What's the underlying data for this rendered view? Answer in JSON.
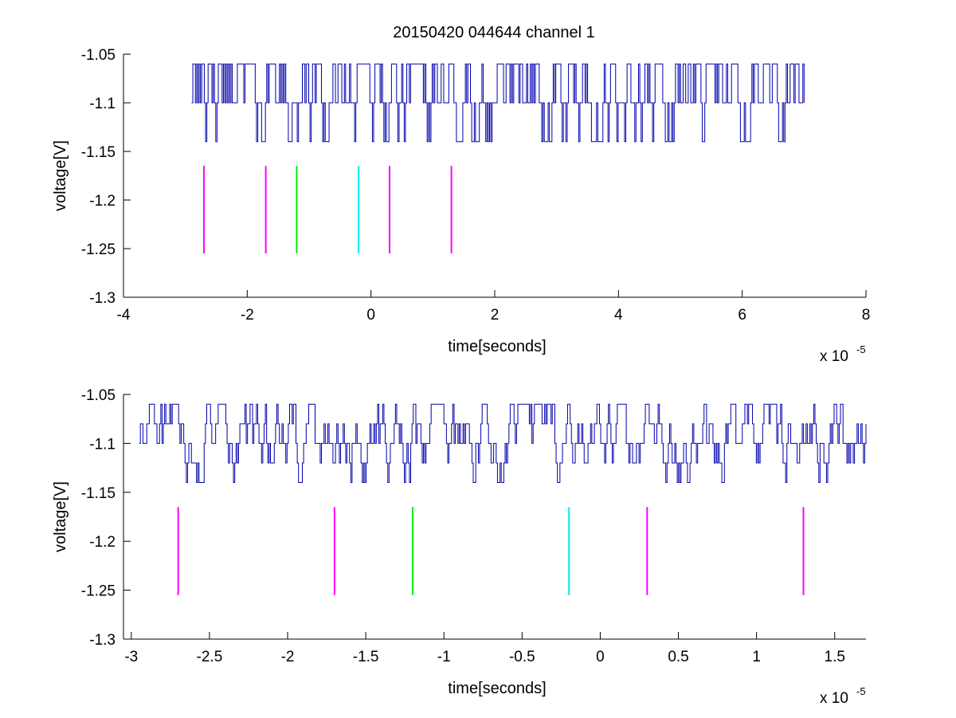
{
  "figure": {
    "title": "20150420 044644 channel 1"
  },
  "chart_data": [
    {
      "type": "line",
      "title": "20150420 044644 channel 1",
      "xlabel": "time[seconds]",
      "ylabel": "voltage[V]",
      "x_multiplier": "x 10",
      "x_multiplier_exponent": "-5",
      "xlim": [
        -4,
        8
      ],
      "ylim": [
        -1.3,
        -1.05
      ],
      "x_ticks": [
        -4,
        -2,
        0,
        2,
        4,
        6,
        8
      ],
      "x_tick_labels": [
        "-4",
        "-2",
        "0",
        "2",
        "4",
        "6",
        "8"
      ],
      "y_ticks": [
        -1.05,
        -1.1,
        -1.15,
        -1.2,
        -1.25,
        -1.3
      ],
      "y_tick_labels": [
        "-1.05",
        "-1.1",
        "-1.15",
        "-1.2",
        "-1.25",
        "-1.3"
      ],
      "grid": false,
      "series": [
        {
          "color": "#0000aa",
          "x_range": [
            -2.9,
            7.0
          ],
          "levels": [
            -1.14,
            -1.1,
            -1.06
          ],
          "baseline": -1.1,
          "seed": 17
        }
      ],
      "markers": [
        {
          "x": -2.7,
          "y_range": [
            -1.255,
            -1.165
          ],
          "color": "#ff00ff"
        },
        {
          "x": -1.7,
          "y_range": [
            -1.255,
            -1.165
          ],
          "color": "#ff00ff"
        },
        {
          "x": -1.2,
          "y_range": [
            -1.255,
            -1.165
          ],
          "color": "#00ee00"
        },
        {
          "x": -0.2,
          "y_range": [
            -1.255,
            -1.165
          ],
          "color": "#00eeee"
        },
        {
          "x": 0.3,
          "y_range": [
            -1.255,
            -1.165
          ],
          "color": "#ff00ff"
        },
        {
          "x": 1.3,
          "y_range": [
            -1.255,
            -1.165
          ],
          "color": "#ff00ff"
        }
      ]
    },
    {
      "type": "line",
      "title": "",
      "xlabel": "time[seconds]",
      "ylabel": "voltage[V]",
      "x_multiplier": "x 10",
      "x_multiplier_exponent": "-5",
      "xlim": [
        -3.05,
        1.7
      ],
      "ylim": [
        -1.3,
        -1.05
      ],
      "x_ticks": [
        -3,
        -2.5,
        -2,
        -1.5,
        -1,
        -0.5,
        0,
        0.5,
        1,
        1.5
      ],
      "x_tick_labels": [
        "-3",
        "-2.5",
        "-2",
        "-1.5",
        "-1",
        "-0.5",
        "0",
        "0.5",
        "1",
        "1.5"
      ],
      "y_ticks": [
        -1.05,
        -1.1,
        -1.15,
        -1.2,
        -1.25,
        -1.3
      ],
      "y_tick_labels": [
        "-1.05",
        "-1.1",
        "-1.15",
        "-1.2",
        "-1.25",
        "-1.3"
      ],
      "grid": false,
      "series": [
        {
          "color": "#0000aa",
          "x_range": [
            -2.95,
            1.7
          ],
          "levels": [
            -1.14,
            -1.12,
            -1.1,
            -1.08,
            -1.06
          ],
          "baseline": -1.1,
          "seed": 29
        }
      ],
      "markers": [
        {
          "x": -2.7,
          "y_range": [
            -1.255,
            -1.165
          ],
          "color": "#ff00ff"
        },
        {
          "x": -1.7,
          "y_range": [
            -1.255,
            -1.165
          ],
          "color": "#ff00ff"
        },
        {
          "x": -1.2,
          "y_range": [
            -1.255,
            -1.165
          ],
          "color": "#00ee00"
        },
        {
          "x": -0.2,
          "y_range": [
            -1.255,
            -1.165
          ],
          "color": "#00eeee"
        },
        {
          "x": 0.3,
          "y_range": [
            -1.255,
            -1.165
          ],
          "color": "#ff00ff"
        },
        {
          "x": 1.3,
          "y_range": [
            -1.255,
            -1.165
          ],
          "color": "#ff00ff"
        }
      ]
    }
  ]
}
